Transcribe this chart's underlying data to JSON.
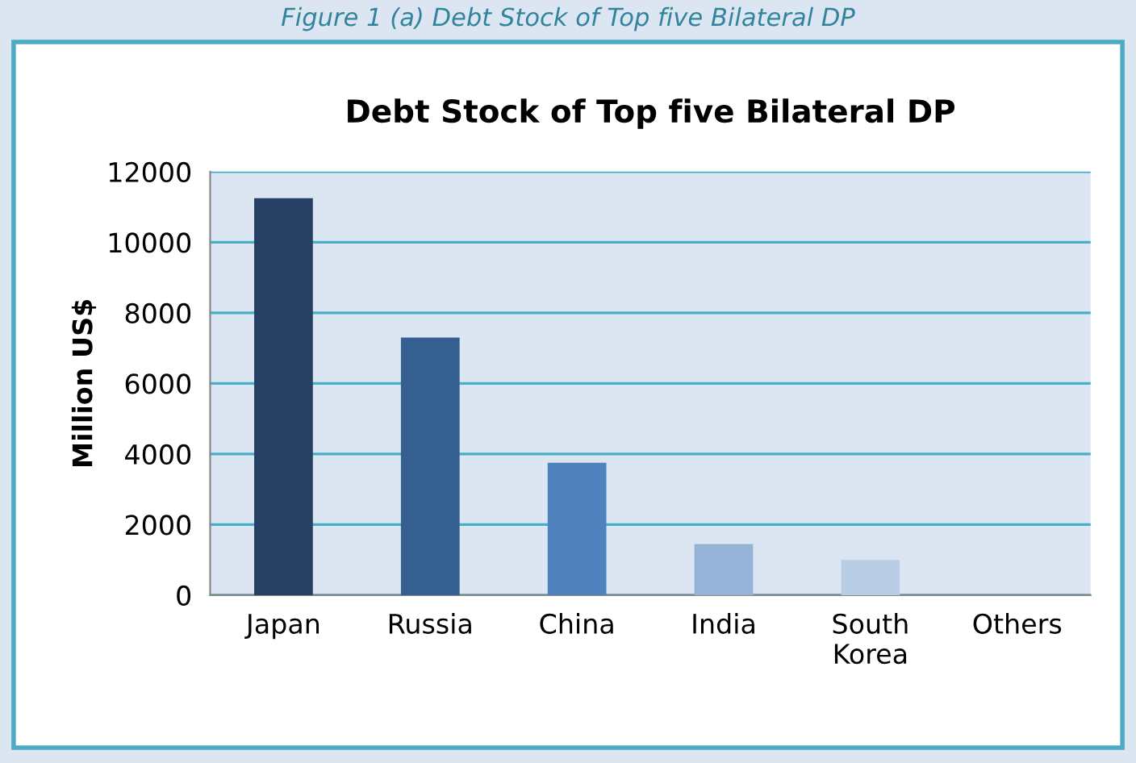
{
  "chart_data": {
    "type": "bar",
    "title": "Debt Stock of Top five Bilateral DP",
    "ylabel": "Million US$",
    "annotations": [
      "Figure 1 (a) Debt Stock of Top five Bilateral DP"
    ],
    "categories": [
      "Japan",
      "Russia",
      "China",
      "India",
      "South\nKorea",
      "Others"
    ],
    "values": [
      11250,
      7300,
      3750,
      1450,
      1000,
      null
    ],
    "colors": [
      "#263f63",
      "#365f91",
      "#4f81bd",
      "#95b3d7",
      "#b9cde5",
      "#dce6f2"
    ],
    "ylim": [
      0,
      12000
    ],
    "yticks": [
      0,
      2000,
      4000,
      6000,
      8000,
      10000,
      12000
    ],
    "grid": "y"
  }
}
